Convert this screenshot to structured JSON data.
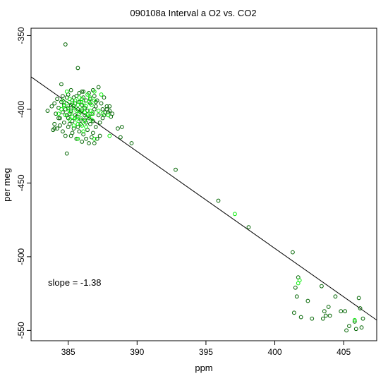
{
  "chart_data": {
    "type": "scatter",
    "title": "090108a   Interval a O2 vs. CO2",
    "xlabel": "ppm",
    "ylabel": "per meg",
    "xlim": [
      382.3,
      407.4
    ],
    "ylim": [
      -557,
      -345
    ],
    "xticks": [
      385,
      390,
      395,
      400,
      405
    ],
    "yticks": [
      -350,
      -400,
      -450,
      -500,
      -550
    ],
    "grid": false,
    "annotation": "slope =  -1.38",
    "slope": -1.38,
    "fit_line": {
      "x": [
        382.3,
        407.4
      ],
      "y": [
        -378,
        -543
      ]
    },
    "colors": {
      "dark_series": "#006400",
      "bright_series": "#00ee00",
      "fit_line": "#000000"
    },
    "series": [
      {
        "color": "dark",
        "points": [
          [
            384.8,
            -356
          ],
          [
            385.7,
            -372
          ],
          [
            384.5,
            -383
          ],
          [
            386.0,
            -388
          ],
          [
            385.2,
            -387
          ],
          [
            386.5,
            -389
          ],
          [
            387.2,
            -385
          ],
          [
            386.8,
            -387
          ],
          [
            385.0,
            -390
          ],
          [
            384.6,
            -391
          ],
          [
            384.2,
            -393
          ],
          [
            384.0,
            -396
          ],
          [
            383.8,
            -398
          ],
          [
            383.5,
            -401
          ],
          [
            384.1,
            -403
          ],
          [
            384.3,
            -406
          ],
          [
            384.9,
            -392
          ],
          [
            385.3,
            -394
          ],
          [
            385.6,
            -391
          ],
          [
            385.8,
            -395
          ],
          [
            386.1,
            -392
          ],
          [
            386.3,
            -394
          ],
          [
            386.6,
            -393
          ],
          [
            386.9,
            -391
          ],
          [
            387.1,
            -394
          ],
          [
            387.4,
            -396
          ],
          [
            387.6,
            -392
          ],
          [
            387.8,
            -398
          ],
          [
            388.0,
            -401
          ],
          [
            388.2,
            -403
          ],
          [
            388.0,
            -398
          ],
          [
            387.9,
            -402
          ],
          [
            384.7,
            -397
          ],
          [
            385.0,
            -399
          ],
          [
            385.2,
            -401
          ],
          [
            385.4,
            -398
          ],
          [
            385.7,
            -400
          ],
          [
            385.9,
            -402
          ],
          [
            386.2,
            -399
          ],
          [
            386.4,
            -401
          ],
          [
            386.7,
            -403
          ],
          [
            386.9,
            -400
          ],
          [
            387.2,
            -404
          ],
          [
            387.5,
            -406
          ],
          [
            387.3,
            -409
          ],
          [
            386.8,
            -408
          ],
          [
            386.5,
            -406
          ],
          [
            386.2,
            -404
          ],
          [
            385.9,
            -407
          ],
          [
            385.6,
            -405
          ],
          [
            385.3,
            -408
          ],
          [
            385.0,
            -406
          ],
          [
            384.7,
            -409
          ],
          [
            384.4,
            -411
          ],
          [
            384.2,
            -413
          ],
          [
            384.6,
            -415
          ],
          [
            385.0,
            -412
          ],
          [
            385.4,
            -413
          ],
          [
            385.8,
            -415
          ],
          [
            386.1,
            -417
          ],
          [
            386.4,
            -414
          ],
          [
            386.8,
            -416
          ],
          [
            387.0,
            -412
          ],
          [
            387.3,
            -418
          ],
          [
            385.2,
            -418
          ],
          [
            385.6,
            -420
          ],
          [
            386.0,
            -422
          ],
          [
            386.5,
            -423
          ],
          [
            386.9,
            -423
          ],
          [
            385.3,
            -416
          ],
          [
            384.8,
            -418
          ],
          [
            384.9,
            -430
          ],
          [
            386.3,
            -420
          ],
          [
            386.7,
            -419
          ],
          [
            387.1,
            -420
          ],
          [
            384.0,
            -410
          ],
          [
            384.4,
            -406
          ],
          [
            385.5,
            -396
          ],
          [
            386.0,
            -397
          ],
          [
            386.6,
            -396
          ],
          [
            387.0,
            -398
          ],
          [
            385.1,
            -403
          ],
          [
            385.5,
            -404
          ],
          [
            385.9,
            -410
          ],
          [
            386.3,
            -409
          ],
          [
            386.6,
            -410
          ],
          [
            385.7,
            -412
          ],
          [
            384.6,
            -402
          ],
          [
            384.9,
            -404
          ],
          [
            387.6,
            -404
          ],
          [
            387.8,
            -400
          ],
          [
            388.1,
            -405
          ],
          [
            388.6,
            -413
          ],
          [
            388.9,
            -412
          ],
          [
            388.8,
            -419
          ],
          [
            389.6,
            -423
          ],
          [
            384.0,
            -413
          ],
          [
            383.9,
            -414
          ],
          [
            385.1,
            -410
          ],
          [
            386.0,
            -401
          ],
          [
            386.2,
            -407
          ],
          [
            385.4,
            -392
          ],
          [
            384.3,
            -399
          ],
          [
            385.8,
            -389
          ],
          [
            386.1,
            -388
          ],
          [
            387.0,
            -395
          ],
          [
            387.7,
            -402
          ],
          [
            387.5,
            -400
          ],
          [
            384.5,
            -395
          ],
          [
            384.8,
            -400
          ],
          [
            385.2,
            -397
          ],
          [
            392.8,
            -441
          ],
          [
            395.9,
            -462
          ],
          [
            398.1,
            -480
          ],
          [
            401.3,
            -497
          ],
          [
            401.7,
            -514
          ],
          [
            401.5,
            -521
          ],
          [
            401.6,
            -527
          ],
          [
            401.4,
            -538
          ],
          [
            401.9,
            -541
          ],
          [
            402.4,
            -530
          ],
          [
            402.7,
            -542
          ],
          [
            403.4,
            -520
          ],
          [
            403.6,
            -537
          ],
          [
            403.7,
            -540
          ],
          [
            403.5,
            -542
          ],
          [
            403.9,
            -534
          ],
          [
            404.0,
            -540
          ],
          [
            404.4,
            -527
          ],
          [
            404.8,
            -537
          ],
          [
            405.1,
            -537
          ],
          [
            405.2,
            -550
          ],
          [
            405.4,
            -547
          ],
          [
            405.8,
            -544
          ],
          [
            405.9,
            -549
          ],
          [
            406.1,
            -528
          ],
          [
            406.2,
            -535
          ],
          [
            406.3,
            -548
          ],
          [
            406.4,
            -542
          ]
        ]
      },
      {
        "color": "bright",
        "points": [
          [
            384.6,
            -394
          ],
          [
            384.9,
            -396
          ],
          [
            385.1,
            -393
          ],
          [
            385.3,
            -396
          ],
          [
            385.5,
            -394
          ],
          [
            385.7,
            -397
          ],
          [
            385.9,
            -395
          ],
          [
            386.1,
            -396
          ],
          [
            386.3,
            -398
          ],
          [
            386.5,
            -395
          ],
          [
            386.7,
            -397
          ],
          [
            386.9,
            -394
          ],
          [
            385.0,
            -400
          ],
          [
            385.2,
            -402
          ],
          [
            385.4,
            -399
          ],
          [
            385.6,
            -401
          ],
          [
            385.8,
            -403
          ],
          [
            386.0,
            -400
          ],
          [
            386.2,
            -402
          ],
          [
            386.4,
            -404
          ],
          [
            386.6,
            -401
          ],
          [
            386.8,
            -403
          ],
          [
            385.3,
            -405
          ],
          [
            385.6,
            -407
          ],
          [
            385.9,
            -406
          ],
          [
            386.2,
            -408
          ],
          [
            386.5,
            -405
          ],
          [
            385.1,
            -407
          ],
          [
            384.8,
            -404
          ],
          [
            385.7,
            -410
          ],
          [
            386.0,
            -411
          ],
          [
            386.3,
            -412
          ],
          [
            385.4,
            -411
          ],
          [
            384.5,
            -400
          ],
          [
            384.7,
            -398
          ],
          [
            386.9,
            -388
          ],
          [
            387.4,
            -390
          ],
          [
            386.4,
            -390
          ],
          [
            385.8,
            -392
          ],
          [
            386.6,
            -392
          ],
          [
            387.2,
            -401
          ],
          [
            387.5,
            -403
          ],
          [
            387.9,
            -404
          ],
          [
            386.1,
            -415
          ],
          [
            385.7,
            -420
          ],
          [
            386.9,
            -420
          ],
          [
            388.0,
            -418
          ],
          [
            384.9,
            -388
          ],
          [
            385.5,
            -406
          ],
          [
            386.7,
            -407
          ],
          [
            384.3,
            -403
          ],
          [
            386.0,
            -393
          ],
          [
            397.1,
            -471
          ],
          [
            401.8,
            -516
          ],
          [
            401.7,
            -518
          ],
          [
            405.8,
            -543
          ]
        ]
      }
    ]
  }
}
